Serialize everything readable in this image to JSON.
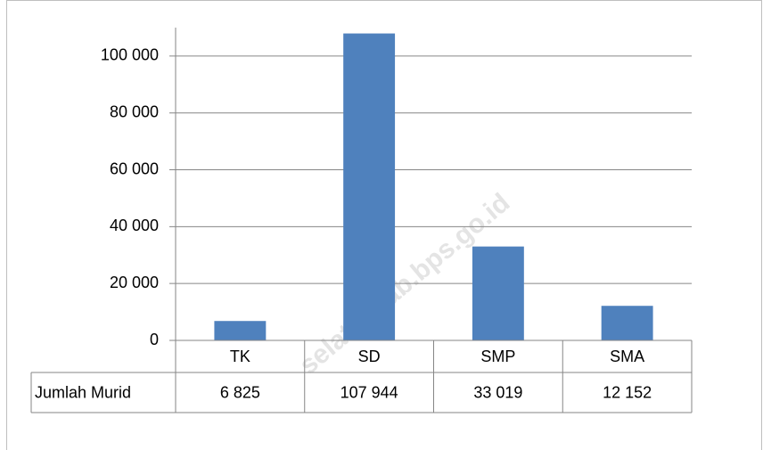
{
  "chart_data": {
    "type": "bar",
    "categories": [
      "TK",
      "SD",
      "SMP",
      "SMA"
    ],
    "series": [
      {
        "name": "Jumlah Murid",
        "color": "#4f81bd",
        "values": [
          6825,
          107944,
          33019,
          12152
        ],
        "value_labels": [
          "6 825",
          "107 944",
          "33 019",
          "12 152"
        ]
      }
    ],
    "ylim": [
      0,
      110000
    ],
    "yticks": [
      0,
      {
        "value": 20000,
        "label": "20 000"
      },
      {
        "value": 40000,
        "label": "40 000"
      },
      {
        "value": 60000,
        "label": "60 000"
      },
      {
        "value": 80000,
        "label": "80 000"
      },
      {
        "value": 100000,
        "label": "100 000"
      }
    ],
    "grid": true,
    "annotation": "selatankab.bps.go.id"
  }
}
